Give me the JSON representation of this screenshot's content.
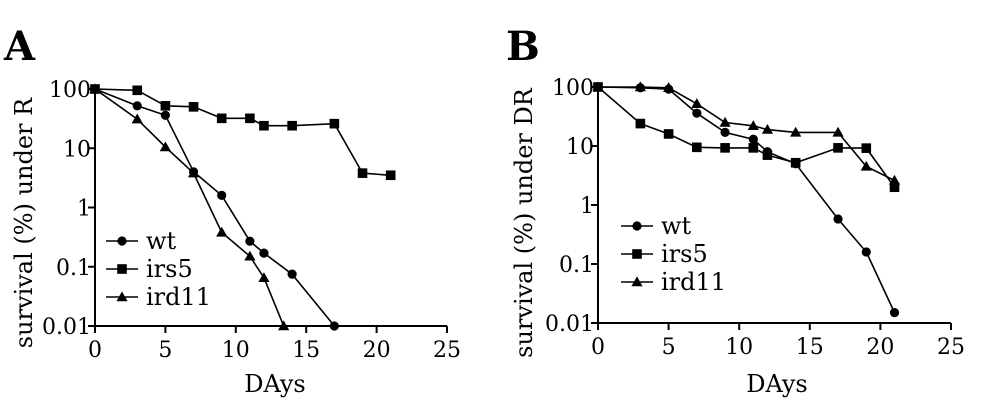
{
  "chart_data": [
    {
      "panel": "A",
      "type": "line",
      "xlabel": "DAys",
      "ylabel": "survival (%) under R",
      "xlim": [
        0,
        25
      ],
      "ylim": [
        0.01,
        100
      ],
      "yscale": "log",
      "xticks": [
        0,
        5,
        10,
        15,
        20,
        25
      ],
      "yticks": [
        100,
        10,
        1,
        0.1,
        0.01
      ],
      "xtick_labels": [
        "0",
        "5",
        "10",
        "15",
        "20",
        "25"
      ],
      "ytick_labels": [
        "100",
        "10",
        "1",
        "0.1",
        "0.01"
      ],
      "legend_position": "bottom-left",
      "series": [
        {
          "name": "wt",
          "marker": "circle",
          "x": [
            0,
            3,
            5,
            7,
            9,
            11,
            12,
            14,
            17
          ],
          "y": [
            100,
            52,
            36,
            4,
            1.6,
            0.27,
            0.17,
            0.075,
            0.01
          ]
        },
        {
          "name": "irs5",
          "marker": "square",
          "x": [
            0,
            3,
            5,
            7,
            9,
            11,
            12,
            14,
            17,
            19,
            21
          ],
          "y": [
            100,
            95,
            52,
            50,
            32,
            32,
            24,
            24,
            26,
            3.8,
            3.5
          ]
        },
        {
          "name": "ird11",
          "marker": "triangle",
          "x": [
            0,
            3,
            5,
            7,
            9,
            11,
            12,
            13.4
          ],
          "y": [
            100,
            31,
            10.5,
            3.8,
            0.38,
            0.15,
            0.065,
            0.01
          ]
        }
      ]
    },
    {
      "panel": "B",
      "type": "line",
      "xlabel": "DAys",
      "ylabel": "survival (%) under DR",
      "xlim": [
        0,
        25
      ],
      "ylim": [
        0.01,
        100
      ],
      "yscale": "log",
      "xticks": [
        0,
        5,
        10,
        15,
        20,
        25
      ],
      "yticks": [
        100,
        10,
        1,
        0.1,
        0.01
      ],
      "xtick_labels": [
        "0",
        "5",
        "10",
        "15",
        "20",
        "25"
      ],
      "ytick_labels": [
        "100",
        "10",
        "1",
        "0.1",
        "0.01"
      ],
      "legend_position": "bottom-left",
      "series": [
        {
          "name": "wt",
          "marker": "circle",
          "x": [
            0,
            3,
            5,
            7,
            9,
            11,
            12,
            14,
            17,
            19,
            21
          ],
          "y": [
            100,
            97,
            92,
            36,
            17,
            13,
            8,
            5,
            0.58,
            0.16,
            0.015
          ]
        },
        {
          "name": "irs5",
          "marker": "square",
          "x": [
            0,
            3,
            5,
            7,
            9,
            11,
            12,
            14,
            17,
            19,
            21
          ],
          "y": [
            100,
            24,
            16,
            9.5,
            9.3,
            9.3,
            7,
            5.2,
            9.3,
            9.2,
            2
          ]
        },
        {
          "name": "ird11",
          "marker": "triangle",
          "x": [
            0,
            3,
            5,
            7,
            9,
            11,
            12,
            14,
            17,
            19,
            21
          ],
          "y": [
            100,
            100,
            97,
            52,
            25,
            22,
            19,
            17,
            17,
            4.5,
            2.6
          ]
        }
      ]
    }
  ]
}
